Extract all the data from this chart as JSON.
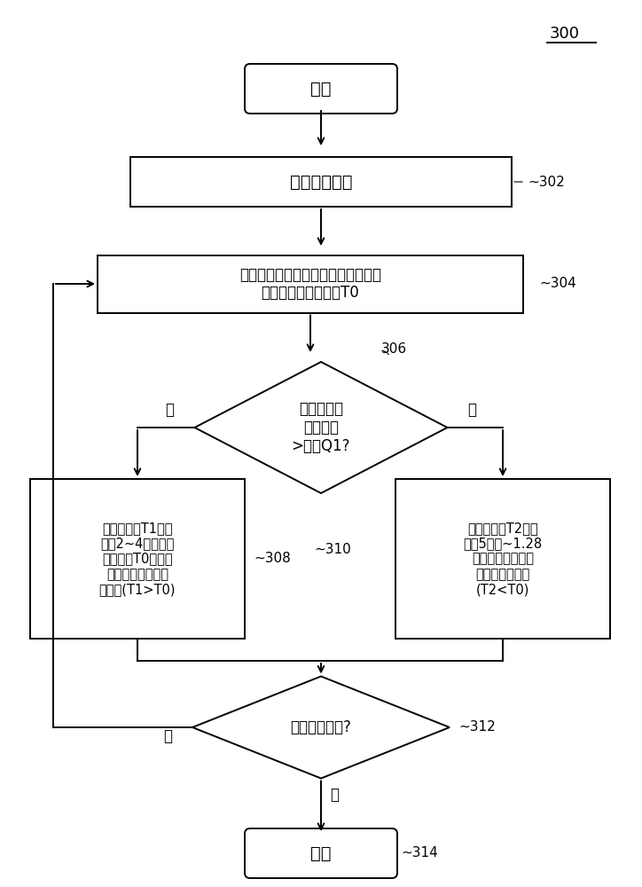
{
  "bg_color": "#ffffff",
  "font_color": "#000000",
  "lw": 1.4,
  "title": "300",
  "start_text": "开始",
  "end_text": "结束",
  "box302_text": "进入服务状态",
  "box304_text": "取得服务小区的测量质量，测量周期\n为一非连续接收周期T0",
  "diamond306_text": "服务小区的\n测量质量\n>阈值Q1?",
  "box308_text": "以测量周期T1（例\n如，2~4个非连续\n接收周期T0）测量\n异频频点的邻小区\n的质量(T1>T0)",
  "box310_text": "以测量周期T2（例\n如，5毫秒~1.28\n秒）测量异频频点\n的邻小区的质量\n(T2<T0)",
  "diamond312_text": "退出服务状态?",
  "label302": "302",
  "label304": "304",
  "label306": "306",
  "label308": "308",
  "label310": "310",
  "label312": "312",
  "label314": "314",
  "yes": "是",
  "no": "否"
}
